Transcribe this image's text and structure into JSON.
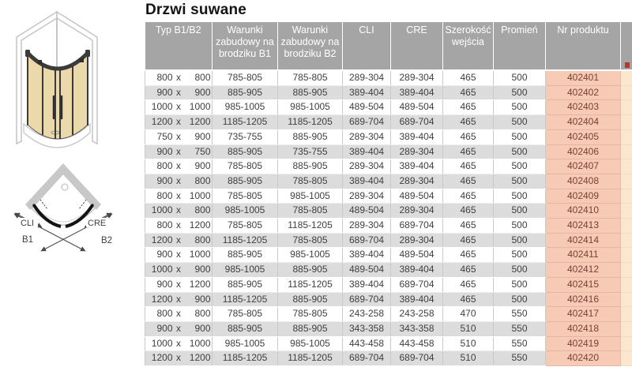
{
  "title": "Drzwi suwane",
  "table": {
    "headers": [
      "Typ B1/B2",
      "Warunki zabudowy na brodziku B1",
      "Warunki zabudowy na brodziku B2",
      "CLI",
      "CRE",
      "Szerokość wejścia",
      "Promień",
      "Nr produktu"
    ],
    "typ_separator": "x",
    "rows": [
      [
        "800",
        "800",
        "785-805",
        "785-805",
        "289-304",
        "289-304",
        "465",
        "500",
        "402401"
      ],
      [
        "900",
        "900",
        "885-905",
        "885-905",
        "389-404",
        "389-404",
        "465",
        "500",
        "402402"
      ],
      [
        "1000",
        "1000",
        "985-1005",
        "985-1005",
        "489-504",
        "489-504",
        "465",
        "500",
        "402403"
      ],
      [
        "1200",
        "1200",
        "1185-1205",
        "1185-1205",
        "689-704",
        "689-704",
        "465",
        "500",
        "402404"
      ],
      [
        "750",
        "900",
        "735-755",
        "885-905",
        "289-304",
        "389-404",
        "465",
        "500",
        "402405"
      ],
      [
        "900",
        "750",
        "885-905",
        "735-755",
        "389-404",
        "289-304",
        "465",
        "500",
        "402406"
      ],
      [
        "800",
        "900",
        "785-805",
        "885-905",
        "289-304",
        "389-404",
        "465",
        "500",
        "402407"
      ],
      [
        "900",
        "800",
        "885-905",
        "785-805",
        "389-404",
        "289-304",
        "465",
        "500",
        "402408"
      ],
      [
        "800",
        "1000",
        "785-805",
        "985-1005",
        "289-304",
        "489-504",
        "465",
        "500",
        "402409"
      ],
      [
        "1000",
        "800",
        "985-1005",
        "785-805",
        "489-504",
        "289-304",
        "465",
        "500",
        "402410"
      ],
      [
        "800",
        "1200",
        "785-805",
        "1185-1205",
        "289-304",
        "689-704",
        "465",
        "500",
        "402413"
      ],
      [
        "1200",
        "800",
        "1185-1205",
        "785-805",
        "689-704",
        "289-304",
        "465",
        "500",
        "402414"
      ],
      [
        "900",
        "1000",
        "885-905",
        "985-1005",
        "389-404",
        "489-504",
        "465",
        "500",
        "402411"
      ],
      [
        "1000",
        "900",
        "985-1005",
        "885-905",
        "489-504",
        "389-404",
        "465",
        "500",
        "402412"
      ],
      [
        "900",
        "1200",
        "885-905",
        "1185-1205",
        "389-404",
        "689-704",
        "465",
        "500",
        "402415"
      ],
      [
        "1200",
        "900",
        "1185-1205",
        "885-905",
        "689-704",
        "389-404",
        "465",
        "500",
        "402416"
      ],
      [
        "800",
        "800",
        "785-805",
        "785-805",
        "243-258",
        "243-258",
        "470",
        "550",
        "402417"
      ],
      [
        "900",
        "900",
        "885-905",
        "885-905",
        "343-358",
        "343-358",
        "510",
        "550",
        "402418"
      ],
      [
        "1000",
        "1000",
        "985-1005",
        "985-1005",
        "443-458",
        "443-458",
        "510",
        "550",
        "402419"
      ],
      [
        "1200",
        "1200",
        "1185-1205",
        "1185-1205",
        "689-704",
        "689-704",
        "510",
        "550",
        "402420"
      ]
    ]
  },
  "diagram": {
    "cli_label": "CLI",
    "cre_label": "CRE",
    "b1_label": "B1",
    "b2_label": "B2"
  },
  "colors": {
    "header_bg": "#a5a5a5",
    "row_alt_bg": "#dcdcdc",
    "product_bg": "#f6cab4",
    "product_text": "#7a4134",
    "partial_bg": "#fbe6cf",
    "glass": "#ecd9ab"
  }
}
